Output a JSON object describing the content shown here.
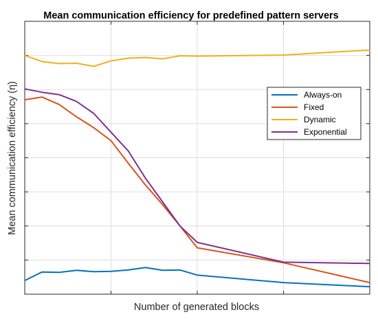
{
  "chart_data": {
    "type": "line",
    "title": "Mean communication efficiency for predefined pattern servers",
    "xlabel": "Number of generated blocks",
    "ylabel": "Mean communication efficiency (η)",
    "grid": true,
    "legend_position": "top-right",
    "x_tick_labels_shown": false,
    "y_tick_labels_shown": false,
    "series": [
      {
        "name": "Always-on",
        "color": "#0072BD",
        "x": [
          0,
          0.05,
          0.1,
          0.15,
          0.2,
          0.25,
          0.3,
          0.35,
          0.4,
          0.45,
          0.5,
          0.75,
          1.0
        ],
        "y": [
          0.04,
          0.065,
          0.064,
          0.07,
          0.066,
          0.067,
          0.071,
          0.078,
          0.07,
          0.071,
          0.056,
          0.034,
          0.022
        ]
      },
      {
        "name": "Fixed",
        "color": "#D95319",
        "x": [
          0,
          0.05,
          0.1,
          0.15,
          0.2,
          0.25,
          0.3,
          0.35,
          0.4,
          0.45,
          0.5,
          0.75,
          1.0
        ],
        "y": [
          0.57,
          0.578,
          0.556,
          0.52,
          0.488,
          0.45,
          0.384,
          0.32,
          0.262,
          0.2,
          0.136,
          0.092,
          0.034
        ]
      },
      {
        "name": "Dynamic",
        "color": "#EDB120",
        "x": [
          0,
          0.05,
          0.1,
          0.15,
          0.2,
          0.25,
          0.3,
          0.35,
          0.4,
          0.45,
          0.5,
          0.75,
          1.0
        ],
        "y": [
          0.7,
          0.682,
          0.676,
          0.677,
          0.668,
          0.684,
          0.692,
          0.694,
          0.69,
          0.699,
          0.698,
          0.701,
          0.716
        ]
      },
      {
        "name": "Exponential",
        "color": "#7E2F8E",
        "x": [
          0,
          0.05,
          0.1,
          0.15,
          0.2,
          0.25,
          0.3,
          0.35,
          0.4,
          0.45,
          0.5,
          0.75,
          1.0
        ],
        "y": [
          0.602,
          0.592,
          0.585,
          0.565,
          0.53,
          0.475,
          0.42,
          0.34,
          0.27,
          0.2,
          0.152,
          0.094,
          0.09
        ]
      }
    ],
    "xlim": [
      0,
      1
    ],
    "ylim": [
      0,
      0.8
    ],
    "x_gridlines": [
      0.25,
      0.5,
      0.75
    ],
    "y_gridlines": [
      0.1,
      0.2,
      0.3,
      0.4,
      0.5,
      0.6,
      0.7
    ]
  }
}
